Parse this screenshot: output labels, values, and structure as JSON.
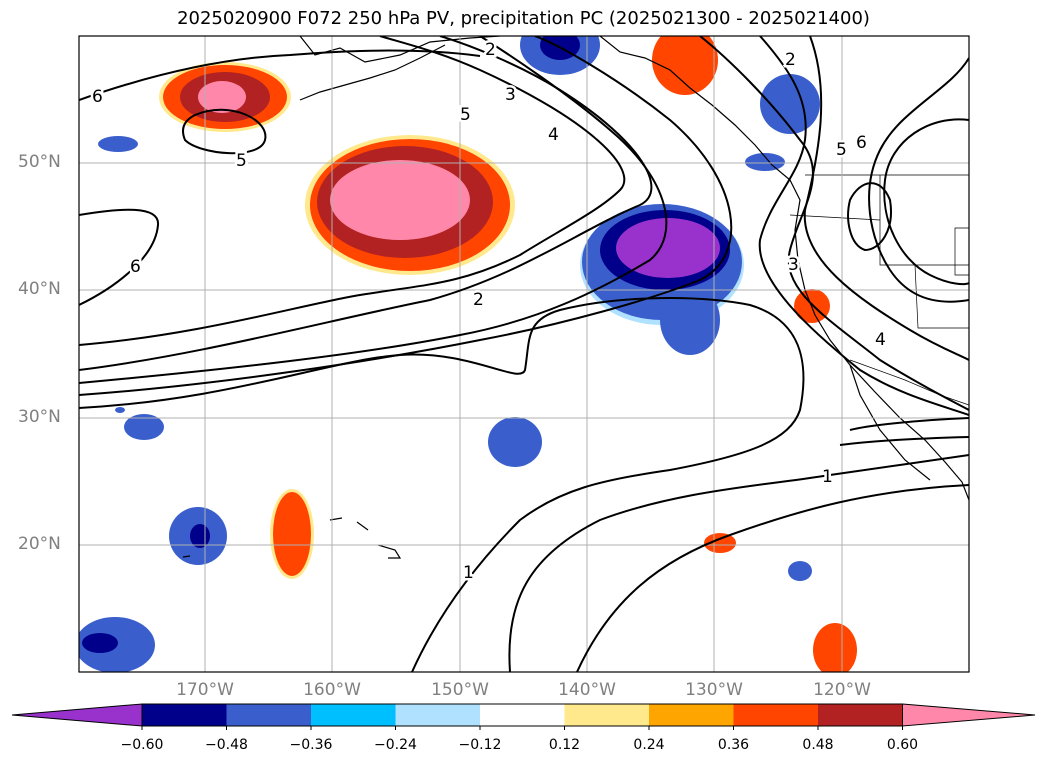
{
  "title": "2025020900 F072 250 hPa PV, precipitation PC (2025021300 - 2025021400)",
  "map": {
    "lat_labels": [
      "50°N",
      "40°N",
      "30°N",
      "20°N"
    ],
    "lon_labels": [
      "170°W",
      "160°W",
      "150°W",
      "140°W",
      "130°W",
      "120°W"
    ],
    "contour_labels": [
      "6",
      "5",
      "3",
      "4",
      "5",
      "6",
      "2",
      "2",
      "2",
      "1",
      "1",
      "6",
      "5",
      "4",
      "3"
    ]
  },
  "colorbar": {
    "ticks": [
      "−0.60",
      "−0.48",
      "−0.36",
      "−0.24",
      "−0.12",
      "0.12",
      "0.24",
      "0.36",
      "0.48",
      "0.60"
    ],
    "colors": [
      "#9932cc",
      "#00008b",
      "#3a5fcd",
      "#00bfff",
      "#b0e2ff",
      "#ffffff",
      "#ffe98c",
      "#ffa500",
      "#ff4500",
      "#b22222",
      "#ff88aa"
    ]
  }
}
